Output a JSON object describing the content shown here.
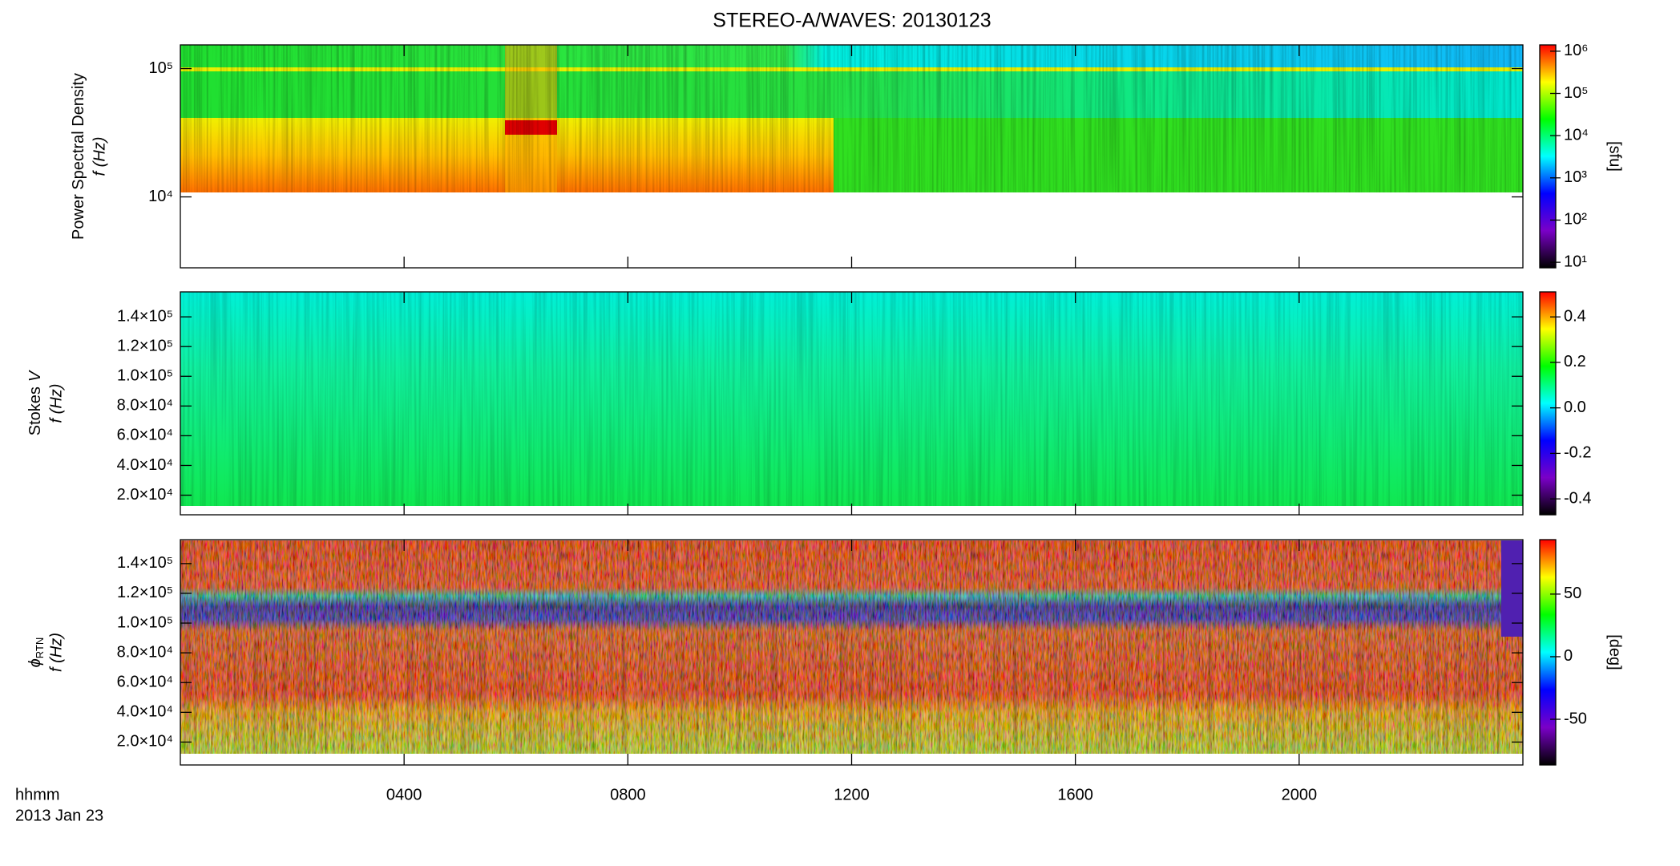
{
  "figure": {
    "title": "STEREO-A/WAVES: 20130123",
    "xlabel": "hhmm",
    "date_label": "2013 Jan 23",
    "xlim": [
      0,
      24
    ],
    "xticks": [
      {
        "value": 4,
        "label": "0400"
      },
      {
        "value": 8,
        "label": "0800"
      },
      {
        "value": 12,
        "label": "1200"
      },
      {
        "value": 16,
        "label": "1600"
      },
      {
        "value": 20,
        "label": "2000"
      }
    ]
  },
  "chart_data": [
    {
      "type": "heatmap",
      "ylabel": "Power Spectral Density",
      "ylabel_unit": "f (Hz)",
      "log_y": true,
      "ylim": [
        2800,
        153000
      ],
      "yticks": [
        {
          "value": 10000,
          "label": "10⁴"
        },
        {
          "value": 100000,
          "label": "10⁵"
        }
      ],
      "colorbar": {
        "label": "[sfu]",
        "log": true,
        "lim": [
          7.4,
          1410000
        ],
        "colors": [
          "#000000",
          "#7a00c8",
          "#0000ff",
          "#00ffff",
          "#00ff00",
          "#ffff00",
          "#ff0000"
        ],
        "ticks": [
          {
            "value": 10,
            "label": "10¹"
          },
          {
            "value": 100,
            "label": "10²"
          },
          {
            "value": 1000,
            "label": "10³"
          },
          {
            "value": 10000,
            "label": "10⁴"
          },
          {
            "value": 100000,
            "label": "10⁵"
          },
          {
            "value": 1000000,
            "label": "10⁶"
          }
        ]
      }
    },
    {
      "type": "heatmap",
      "ylabel": "Stokes",
      "ylabel_symbol": "V",
      "ylabel_unit": "f (Hz)",
      "log_y": false,
      "ylim": [
        6800,
        156800
      ],
      "yticks": [
        {
          "value": 20000,
          "label": "2.0×10⁴"
        },
        {
          "value": 40000,
          "label": "4.0×10⁴"
        },
        {
          "value": 60000,
          "label": "6.0×10⁴"
        },
        {
          "value": 80000,
          "label": "8.0×10⁴"
        },
        {
          "value": 100000,
          "label": "1.0×10⁵"
        },
        {
          "value": 120000,
          "label": "1.2×10⁵"
        },
        {
          "value": 140000,
          "label": "1.4×10⁵"
        }
      ],
      "colorbar": {
        "log": false,
        "lim": [
          -0.47,
          0.51
        ],
        "colors": [
          "#000000",
          "#7a00c8",
          "#0000ff",
          "#00ffff",
          "#00ff00",
          "#ffff00",
          "#ff0000"
        ],
        "ticks": [
          -0.4,
          -0.2,
          {
            "value": 0,
            "label": "0.0"
          },
          0.2,
          0.4
        ]
      }
    },
    {
      "type": "heatmap",
      "ylabel_symbol": "ϕ",
      "ylabel_subscript": "RTN",
      "ylabel_unit": "f (Hz)",
      "log_y": false,
      "ylim": [
        4600,
        156100
      ],
      "yticks": [
        {
          "value": 20000,
          "label": "2.0×10⁴"
        },
        {
          "value": 40000,
          "label": "4.0×10⁴"
        },
        {
          "value": 60000,
          "label": "6.0×10⁴"
        },
        {
          "value": 80000,
          "label": "8.0×10⁴"
        },
        {
          "value": 100000,
          "label": "1.0×10⁵"
        },
        {
          "value": 120000,
          "label": "1.2×10⁵"
        },
        {
          "value": 140000,
          "label": "1.4×10⁵"
        }
      ],
      "colorbar": {
        "label": "[deg]",
        "log": false,
        "lim": [
          -86.5,
          93.5
        ],
        "colors": [
          "#000000",
          "#7a00c8",
          "#0000ff",
          "#00ffff",
          "#00ff00",
          "#ffff00",
          "#ff0000"
        ],
        "ticks": [
          -50,
          0,
          50
        ]
      }
    }
  ]
}
